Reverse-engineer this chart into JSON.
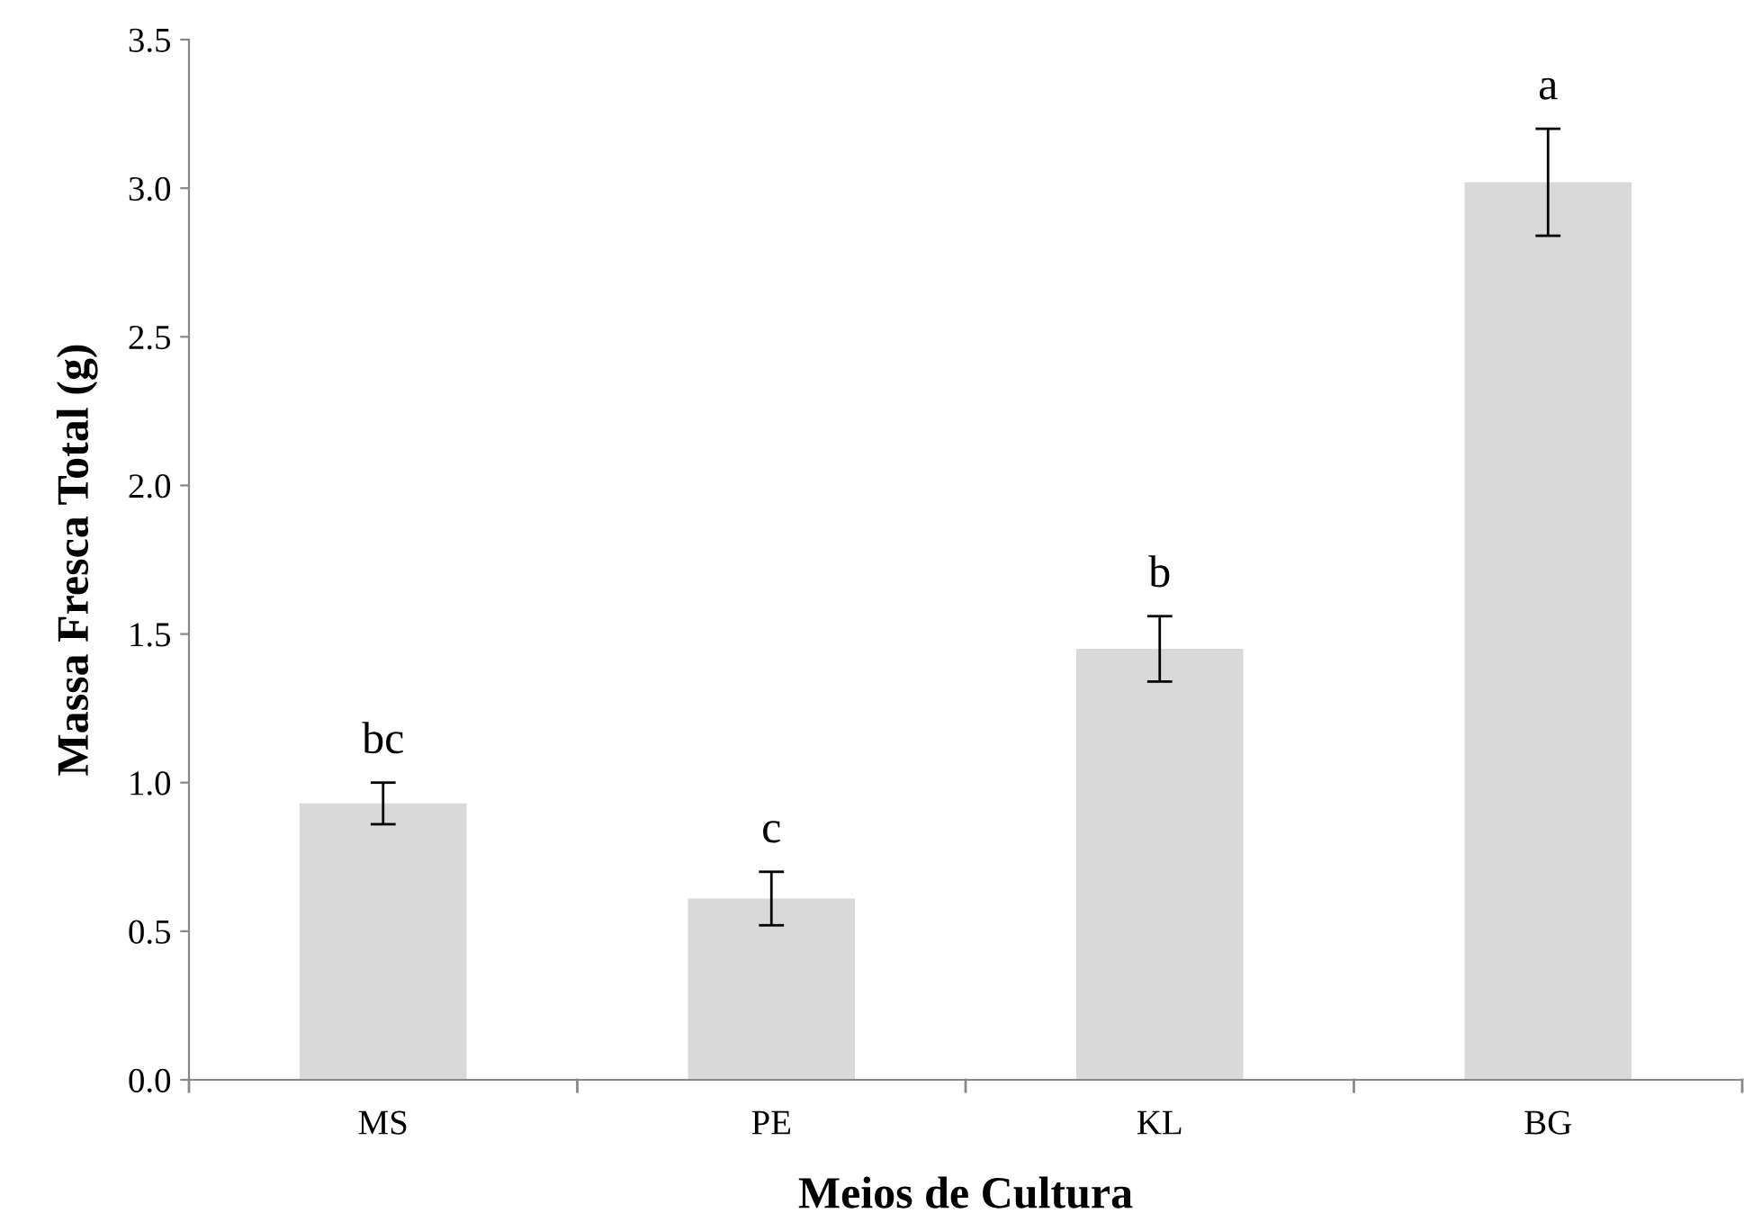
{
  "chart_data": {
    "type": "bar",
    "xlabel": "Meios de Cultura",
    "ylabel": "Massa Fresca Total (g)",
    "categories": [
      "MS",
      "PE",
      "KL",
      "BG"
    ],
    "values": [
      0.93,
      0.61,
      1.45,
      3.02
    ],
    "errors": [
      0.07,
      0.09,
      0.11,
      0.18
    ],
    "color": "#d9d9d9",
    "ylim": [
      0,
      3.5
    ],
    "yticks": [
      {
        "value": 0,
        "label": "0.0"
      },
      {
        "value": 0.5,
        "label": "0.5"
      },
      {
        "value": 1,
        "label": "1.0"
      },
      {
        "value": 1.5,
        "label": "1.5"
      },
      {
        "value": 2,
        "label": "2.0"
      },
      {
        "value": 2.5,
        "label": "2.5"
      },
      {
        "value": 3,
        "label": "3.0"
      },
      {
        "value": 3.5,
        "label": "3.5"
      }
    ],
    "annotations": [
      "bc",
      "c",
      "b",
      "a"
    ]
  }
}
